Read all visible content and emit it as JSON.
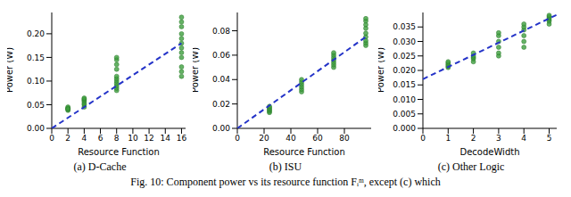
{
  "caption": "Fig. 10: Component power vs its resource function Fᵢᵐ, except (c) which",
  "chart_data": [
    {
      "type": "scatter",
      "title": "(a) D-Cache",
      "x_label": "Resource Function",
      "y_label": "Power (W)",
      "xlim": [
        0,
        16.5
      ],
      "xticks": [
        0,
        2,
        4,
        6,
        8,
        10,
        12,
        14,
        16
      ],
      "ylim": [
        0,
        0.245
      ],
      "yticks": [
        {
          "value": 0,
          "label": "0.00"
        },
        0.05,
        {
          "value": 0.1,
          "label": "0.10"
        },
        0.15,
        {
          "value": 0.2,
          "label": "0.20"
        }
      ],
      "grid": false,
      "series": [
        {
          "type": "scatter",
          "color": "#3f9f3f",
          "marker": "circle",
          "x": [
            2,
            2,
            2,
            2,
            2,
            2,
            4,
            4,
            4,
            4,
            4,
            4,
            4,
            8,
            8,
            8,
            8,
            8,
            8,
            8,
            8,
            8,
            8,
            8,
            16,
            16,
            16,
            16,
            16,
            16,
            16,
            16,
            16,
            16,
            16,
            16
          ],
          "values": [
            0.038,
            0.04,
            0.042,
            0.043,
            0.045,
            0.041,
            0.045,
            0.05,
            0.053,
            0.057,
            0.06,
            0.062,
            0.064,
            0.08,
            0.085,
            0.09,
            0.095,
            0.1,
            0.105,
            0.11,
            0.125,
            0.135,
            0.145,
            0.15,
            0.11,
            0.12,
            0.13,
            0.15,
            0.16,
            0.17,
            0.18,
            0.19,
            0.2,
            0.215,
            0.225,
            0.235
          ]
        },
        {
          "type": "line",
          "color": "#2433c8",
          "line_style": "dashed",
          "x": [
            0,
            16
          ],
          "values": [
            0,
            0.18
          ]
        }
      ]
    },
    {
      "type": "scatter",
      "title": "(b) ISU",
      "x_label": "Resource Function",
      "y_label": "Power (W)",
      "xlim": [
        0,
        100
      ],
      "xticks": [
        0,
        20,
        40,
        60,
        80
      ],
      "ylim": [
        0,
        0.095
      ],
      "yticks": [
        {
          "value": 0,
          "label": "0.00"
        },
        0.02,
        0.04,
        0.06,
        0.08
      ],
      "grid": false,
      "series": [
        {
          "type": "scatter",
          "color": "#3f9f3f",
          "marker": "circle",
          "x": [
            24,
            24,
            24,
            24,
            24,
            24,
            48,
            48,
            48,
            48,
            48,
            48,
            72,
            72,
            72,
            72,
            72,
            72,
            72,
            96,
            96,
            96,
            96,
            96,
            96,
            96,
            96,
            96
          ],
          "values": [
            0.013,
            0.014,
            0.015,
            0.016,
            0.017,
            0.018,
            0.03,
            0.032,
            0.034,
            0.036,
            0.038,
            0.04,
            0.05,
            0.052,
            0.054,
            0.056,
            0.058,
            0.06,
            0.062,
            0.068,
            0.07,
            0.072,
            0.075,
            0.078,
            0.082,
            0.085,
            0.088,
            0.09
          ]
        },
        {
          "type": "line",
          "color": "#2433c8",
          "line_style": "dashed",
          "x": [
            0,
            96
          ],
          "values": [
            0,
            0.075
          ]
        }
      ]
    },
    {
      "type": "scatter",
      "title": "(c) Other Logic",
      "x_label": "DecodeWidth",
      "y_label": "Power (W)",
      "xlim": [
        0,
        5.3
      ],
      "xticks": [
        0,
        1,
        2,
        3,
        4,
        5
      ],
      "ylim": [
        0,
        0.04
      ],
      "yticks": [
        {
          "value": 0,
          "label": "0.000"
        },
        0.005,
        {
          "value": 0.01,
          "label": "0.010"
        },
        0.015,
        {
          "value": 0.02,
          "label": "0.020"
        },
        0.025,
        {
          "value": 0.03,
          "label": "0.030"
        },
        0.035
      ],
      "grid": false,
      "series": [
        {
          "type": "scatter",
          "color": "#3f9f3f",
          "marker": "circle",
          "x": [
            1,
            1,
            1,
            1,
            1,
            2,
            2,
            2,
            2,
            2,
            3,
            3,
            3,
            3,
            3,
            3,
            4,
            4,
            4,
            4,
            4,
            4,
            5,
            5,
            5,
            5,
            5,
            5
          ],
          "values": [
            0.021,
            0.0215,
            0.022,
            0.0225,
            0.023,
            0.023,
            0.024,
            0.0245,
            0.025,
            0.026,
            0.025,
            0.026,
            0.028,
            0.03,
            0.032,
            0.033,
            0.028,
            0.03,
            0.032,
            0.034,
            0.035,
            0.036,
            0.036,
            0.037,
            0.0375,
            0.038,
            0.0385,
            0.039
          ]
        },
        {
          "type": "line",
          "color": "#2433c8",
          "line_style": "dashed",
          "x": [
            0,
            5.3
          ],
          "values": [
            0.017,
            0.0392
          ]
        }
      ]
    }
  ]
}
